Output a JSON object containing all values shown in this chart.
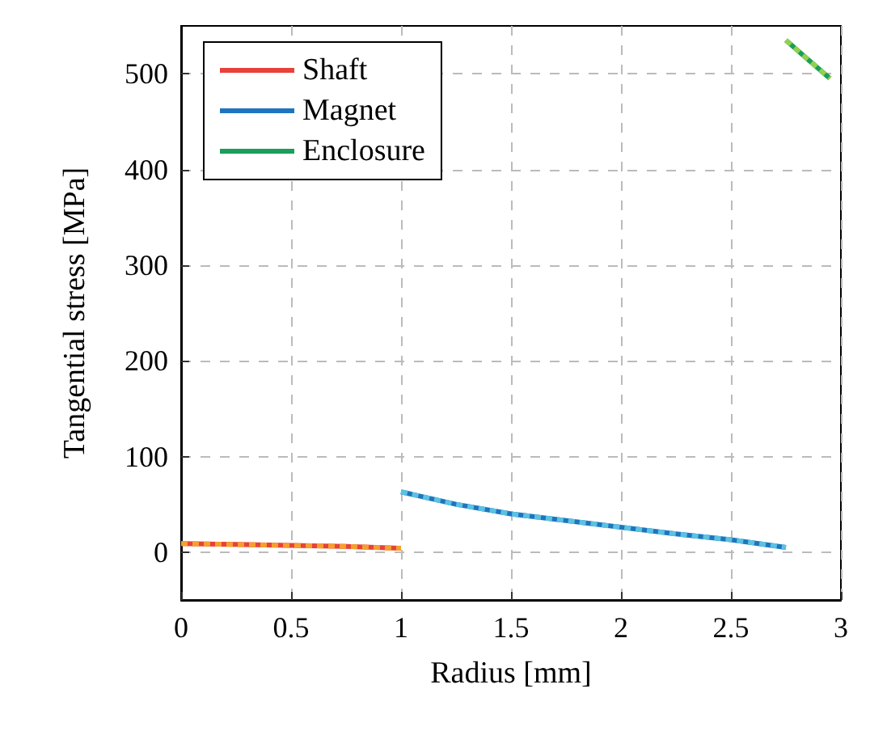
{
  "chart_data": {
    "type": "line",
    "xlabel": "Radius [mm]",
    "ylabel": "Tangential stress [MPa]",
    "xlim": [
      0,
      3
    ],
    "xticks": [
      0,
      0.5,
      1,
      1.5,
      2,
      2.5,
      3
    ],
    "ylim": [
      -50,
      550
    ],
    "yticks": [
      0,
      100,
      200,
      300,
      400,
      500
    ],
    "grid": true,
    "legend": "top left",
    "line_style": "solid",
    "series": [
      {
        "name": "Shaft",
        "color": "#e8413a",
        "x": [
          0,
          0.25,
          0.5,
          0.75,
          1
        ],
        "values": [
          9,
          8,
          7,
          6,
          4
        ]
      },
      {
        "name": "Magnet",
        "color": "#1f74bf",
        "x": [
          1,
          1.25,
          1.5,
          1.75,
          2,
          2.25,
          2.5,
          2.75
        ],
        "values": [
          63,
          50,
          40,
          33,
          26,
          19,
          13,
          5
        ]
      },
      {
        "name": "Enclosure",
        "color": "#1a9e5a",
        "x": [
          2.75,
          2.85,
          2.95
        ],
        "values": [
          535,
          515,
          495
        ]
      },
      {
        "color": "#f5a02e",
        "line_style": "dashed",
        "x": [
          0,
          0.25,
          0.5,
          0.75,
          1
        ],
        "values": [
          9,
          8,
          7,
          6,
          4
        ]
      },
      {
        "color": "#5bc2e0",
        "line_style": "dashed",
        "x": [
          1,
          1.25,
          1.5,
          1.75,
          2,
          2.25,
          2.5,
          2.75
        ],
        "values": [
          63,
          50,
          40,
          33,
          26,
          19,
          13,
          5
        ]
      },
      {
        "color": "#93d04e",
        "line_style": "dashed",
        "x": [
          2.75,
          2.85,
          2.95
        ],
        "values": [
          535,
          515,
          495
        ]
      }
    ]
  }
}
